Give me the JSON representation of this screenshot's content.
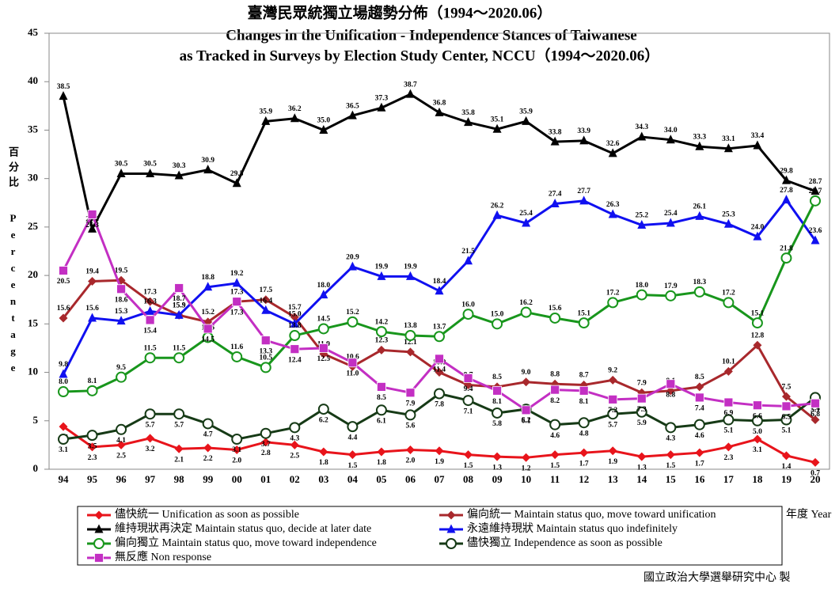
{
  "chart_data": {
    "type": "line",
    "title": "臺灣民眾統獨立場趨勢分佈（1994～2020.06）",
    "subtitle": "Changes in the Unification - Independence Stances of Taiwanese",
    "subtitle2": "as Tracked in Surveys by Election Study Center, NCCU（1994～2020.06）",
    "y_label_zh": "百分比",
    "y_label": "Percentage",
    "x_label": "年度 Year",
    "credit": "國立政治大學選舉研究中心 製",
    "categories": [
      "94",
      "95",
      "96",
      "97",
      "98",
      "99",
      "00",
      "01",
      "02",
      "03",
      "04",
      "05",
      "06",
      "07",
      "08",
      "09",
      "10",
      "11",
      "12",
      "13",
      "14",
      "15",
      "16",
      "17",
      "18",
      "19",
      "20"
    ],
    "ylim": [
      0,
      45
    ],
    "yticks": [
      0,
      5,
      10,
      15,
      20,
      25,
      30,
      35,
      40,
      45
    ],
    "grid": false,
    "series": [
      {
        "name": "儘快統一 Unification as soon as possible",
        "color": "#e8141b",
        "marker": "diamond",
        "values": [
          4.4,
          2.3,
          2.5,
          3.2,
          2.1,
          2.2,
          2.0,
          2.8,
          2.5,
          1.8,
          1.5,
          1.8,
          2.0,
          1.9,
          1.5,
          1.3,
          1.2,
          1.5,
          1.7,
          1.9,
          1.3,
          1.5,
          1.7,
          2.3,
          3.1,
          1.4,
          0.7
        ],
        "value_labels": [
          "4.4",
          "2.3",
          "2.5",
          "3.2",
          "2.1",
          "2.2",
          "2.0",
          "2.8",
          "2.5",
          "1.8",
          "1.5",
          "1.8",
          "2.0",
          "1.9",
          "1.5",
          "1.3",
          "1.2",
          "1.5",
          "1.7",
          "1.9",
          "1.3",
          "1.5",
          "1.7",
          "2.3",
          "3.1",
          "1.4",
          "0.7"
        ]
      },
      {
        "name": "偏向統一 Maintain status quo, move toward unification",
        "color": "#a8282c",
        "marker": "diamond",
        "values": [
          15.6,
          19.4,
          19.5,
          17.3,
          15.9,
          15.2,
          17.3,
          17.5,
          15.7,
          11.9,
          10.6,
          12.3,
          12.1,
          10.0,
          8.7,
          8.5,
          9.0,
          8.8,
          8.7,
          9.2,
          7.9,
          8.1,
          8.5,
          10.1,
          12.8,
          7.5,
          5.1
        ],
        "value_labels": [
          "15.6",
          "19.4",
          "19.5",
          "17.3",
          "15.9",
          "15.2",
          "17.3",
          "17.5",
          "15.7",
          "11.9",
          "10.6",
          "12.3",
          "12.1",
          "10.0",
          "8.7",
          "8.5",
          "9.0",
          "8.8",
          "8.7",
          "9.2",
          "7.9",
          "8.1",
          "8.5",
          "10.1",
          "12.8",
          "7.5",
          "5.1"
        ]
      },
      {
        "name": "維持現狀再決定 Maintain status quo, decide at later date",
        "color": "#000000",
        "marker": "triangle",
        "values": [
          38.5,
          24.8,
          30.5,
          30.5,
          30.3,
          30.9,
          29.5,
          35.9,
          36.2,
          35.0,
          36.5,
          37.3,
          38.7,
          36.8,
          35.8,
          35.1,
          35.9,
          33.8,
          33.9,
          32.6,
          34.3,
          34.0,
          33.3,
          33.1,
          33.4,
          29.8,
          28.7
        ],
        "value_labels": [
          "38.5",
          "24.8",
          "30.5",
          "30.5",
          "30.3",
          "30.9",
          "29.5",
          "35.9",
          "36.2",
          "35.0",
          "36.5",
          "37.3",
          "38.7",
          "36.8",
          "35.8",
          "35.1",
          "35.9",
          "33.8",
          "33.9",
          "32.6",
          "34.3",
          "34.0",
          "33.3",
          "33.1",
          "33.4",
          "29.8",
          "28.7"
        ]
      },
      {
        "name": "永遠維持現狀 Maintain status quo indefinitely",
        "color": "#1010f0",
        "marker": "triangle",
        "values": [
          9.8,
          15.6,
          15.3,
          16.3,
          15.9,
          18.8,
          19.2,
          16.4,
          15.0,
          18.0,
          20.9,
          19.9,
          19.9,
          18.4,
          21.5,
          26.2,
          25.4,
          27.4,
          27.7,
          26.3,
          25.2,
          25.4,
          26.1,
          25.3,
          24.0,
          27.8,
          23.6
        ],
        "value_labels": [
          "9.8",
          "15.6",
          "15.3",
          "16.3",
          "15.9",
          "18.8",
          "19.2",
          "16.4",
          "15.0",
          "18.0",
          "20.9",
          "19.9",
          "19.9",
          "18.4",
          "21.5",
          "26.2",
          "25.4",
          "27.4",
          "27.7",
          "26.3",
          "25.2",
          "25.4",
          "26.1",
          "25.3",
          "24.0",
          "27.8",
          "23.6"
        ]
      },
      {
        "name": "偏向獨立 Maintain status quo, move toward independence",
        "color": "#18961c",
        "marker": "circle",
        "values": [
          8.0,
          8.1,
          9.5,
          11.5,
          11.5,
          13.6,
          11.6,
          10.5,
          13.8,
          14.5,
          15.2,
          14.2,
          13.8,
          13.7,
          16.0,
          15.0,
          16.2,
          15.6,
          15.1,
          17.2,
          18.0,
          17.9,
          18.3,
          17.2,
          15.1,
          21.8,
          27.7
        ],
        "value_labels": [
          "8.0",
          "8.1",
          "9.5",
          "11.5",
          "11.5",
          "13.6",
          "11.6",
          "10.5",
          "13.8",
          "14.5",
          "15.2",
          "14.2",
          "13.8",
          "13.7",
          "16.0",
          "15.0",
          "16.2",
          "15.6",
          "15.1",
          "17.2",
          "18.0",
          "17.9",
          "18.3",
          "17.2",
          "15.1",
          "21.8",
          "27.7"
        ]
      },
      {
        "name": "儘快獨立 Independence as soon as possible",
        "color": "#163a16",
        "marker": "circle",
        "values": [
          3.1,
          3.5,
          4.1,
          5.7,
          5.7,
          4.7,
          3.1,
          3.7,
          4.3,
          6.2,
          4.4,
          6.1,
          5.6,
          7.8,
          7.1,
          5.8,
          6.2,
          4.6,
          4.8,
          5.7,
          5.9,
          4.3,
          4.6,
          5.1,
          5.0,
          5.1,
          7.4
        ],
        "value_labels": [
          "3.1",
          "3.5",
          "4.1",
          "5.7",
          "5.7",
          "4.7",
          "3.1",
          "3.7",
          "4.3",
          "6.2",
          "4.4",
          "6.1",
          "5.6",
          "7.8",
          "7.1",
          "5.8",
          "6.2",
          "4.6",
          "4.8",
          "5.7",
          "5.9",
          "4.3",
          "4.6",
          "5.1",
          "5.0",
          "5.1",
          "7.4"
        ]
      },
      {
        "name": "無反應 Non response",
        "color": "#c32fc3",
        "marker": "square",
        "values": [
          20.5,
          26.3,
          18.6,
          15.4,
          18.7,
          14.5,
          17.3,
          13.3,
          12.4,
          12.5,
          11.0,
          8.5,
          7.9,
          11.4,
          9.4,
          8.1,
          6.1,
          8.2,
          8.1,
          7.2,
          7.3,
          8.8,
          7.4,
          6.9,
          6.6,
          6.5,
          6.8
        ],
        "value_labels": [
          "20.5",
          "26.3",
          "18.6",
          "15.4",
          "18.7",
          "14.5",
          "17.3",
          "13.3",
          "12.4",
          "12.5",
          "11.0",
          "8.5",
          "7.9",
          "11.4",
          "9.4",
          "8.1",
          "6.1",
          "8.2",
          "8.1",
          "7.2",
          "7.3",
          "8.8",
          "7.4",
          "6.9",
          "6.6",
          "6.5",
          "6.8"
        ]
      }
    ]
  }
}
